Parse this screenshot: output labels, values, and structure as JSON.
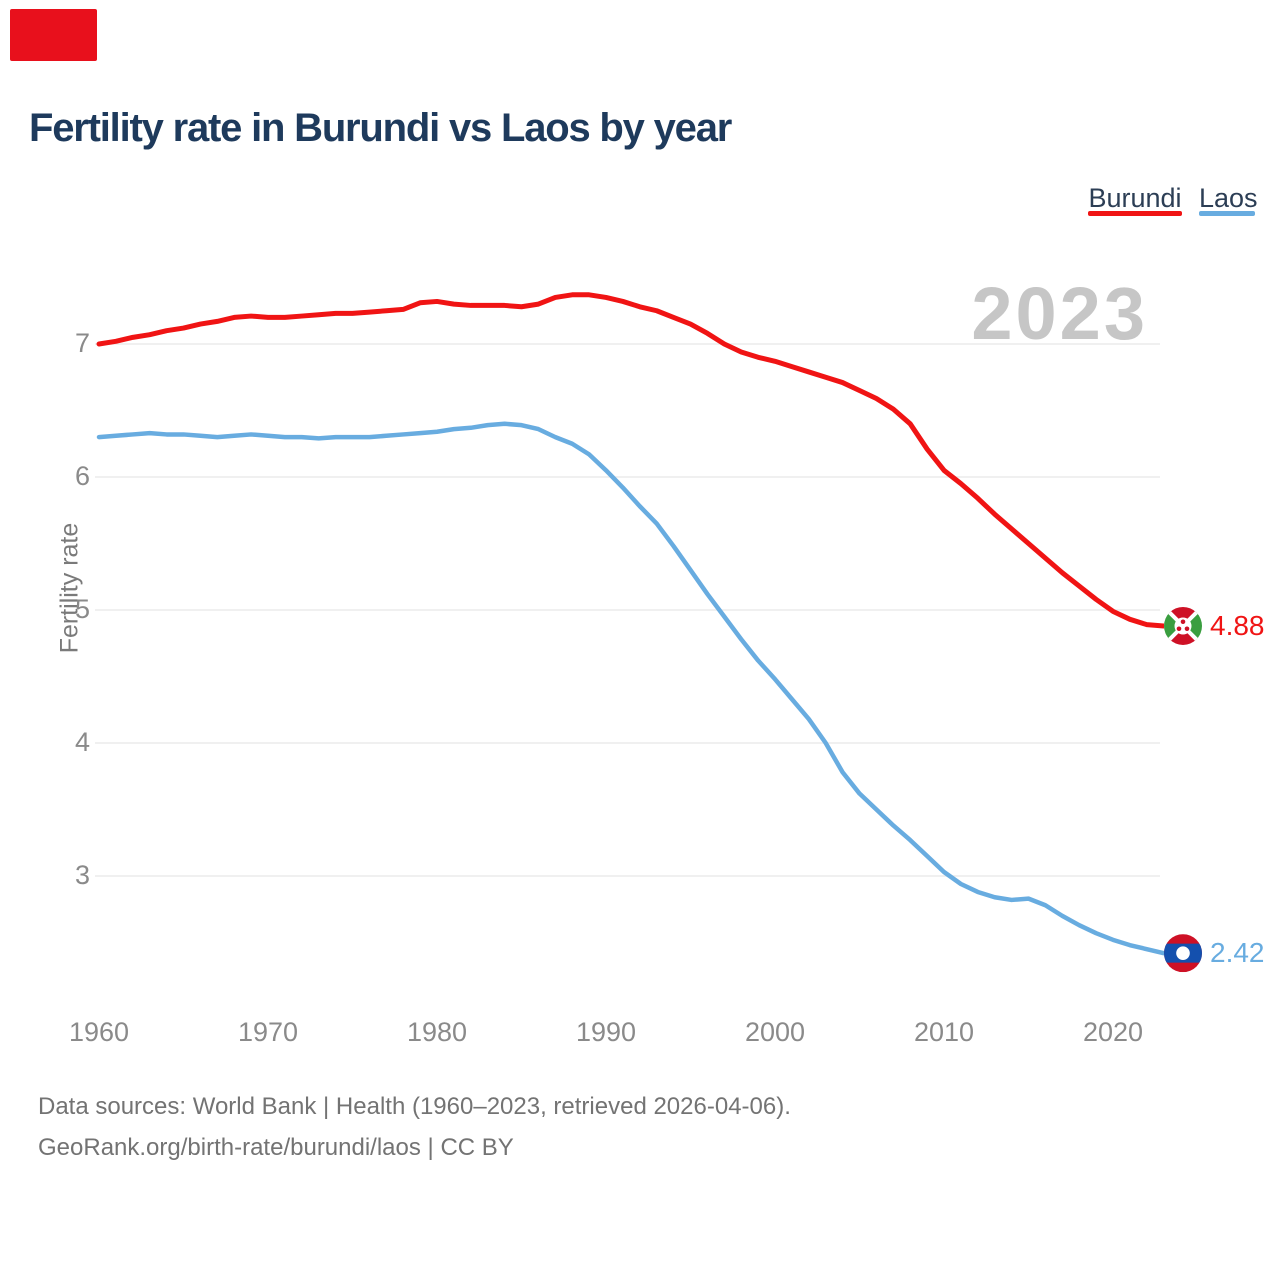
{
  "header": {
    "title": "Fertility rate in Burundi vs Laos by year"
  },
  "legend": [
    {
      "label": "Burundi",
      "color": "#f01414"
    },
    {
      "label": "Laos",
      "color": "#68ace0"
    }
  ],
  "watermark": "2023",
  "axes": {
    "y_label": "Fertility rate",
    "y_ticks": [
      7,
      6,
      5,
      4,
      3
    ],
    "x_ticks": [
      1960,
      1970,
      1980,
      1990,
      2000,
      2010,
      2020
    ]
  },
  "end_labels": {
    "burundi": "4.88",
    "laos": "2.42"
  },
  "footer": {
    "line1": "Data sources: World Bank | Health (1960–2023, retrieved 2026-04-06).",
    "line2": "GeoRank.org/birth-rate/burundi/laos | CC BY"
  },
  "colors": {
    "burundi_line": "#f01414",
    "laos_line": "#68ace0",
    "red_box": "#e8101c",
    "gridline": "#ececec",
    "title_text": "#1e3a5c",
    "tick_text": "#8a8a8a",
    "watermark_text": "#c6c6c6",
    "burundi_flag_red": "#ce1126",
    "burundi_flag_green": "#3a9e3f",
    "laos_flag_red": "#ce1126",
    "laos_flag_blue": "#1450ae"
  },
  "chart_data": {
    "type": "line",
    "title": "Fertility rate in Burundi vs Laos by year",
    "xlabel": "",
    "ylabel": "Fertility rate",
    "ylim": [
      2.2,
      7.6
    ],
    "xlim": [
      1960,
      2023
    ],
    "grid": "horizontal",
    "legend_position": "top-right",
    "current_year_watermark": "2023",
    "x": [
      1960,
      1961,
      1962,
      1963,
      1964,
      1965,
      1966,
      1967,
      1968,
      1969,
      1970,
      1971,
      1972,
      1973,
      1974,
      1975,
      1976,
      1977,
      1978,
      1979,
      1980,
      1981,
      1982,
      1983,
      1984,
      1985,
      1986,
      1987,
      1988,
      1989,
      1990,
      1991,
      1992,
      1993,
      1994,
      1995,
      1996,
      1997,
      1998,
      1999,
      2000,
      2001,
      2002,
      2003,
      2004,
      2005,
      2006,
      2007,
      2008,
      2009,
      2010,
      2011,
      2012,
      2013,
      2014,
      2015,
      2016,
      2017,
      2018,
      2019,
      2020,
      2021,
      2022,
      2023
    ],
    "series": [
      {
        "name": "Burundi",
        "color": "#f01414",
        "end_value": 4.88,
        "values": [
          7.0,
          7.02,
          7.05,
          7.07,
          7.1,
          7.12,
          7.15,
          7.17,
          7.2,
          7.21,
          7.2,
          7.2,
          7.21,
          7.22,
          7.23,
          7.23,
          7.24,
          7.25,
          7.26,
          7.31,
          7.32,
          7.3,
          7.29,
          7.29,
          7.29,
          7.28,
          7.3,
          7.35,
          7.37,
          7.37,
          7.35,
          7.32,
          7.28,
          7.25,
          7.2,
          7.15,
          7.08,
          7.0,
          6.94,
          6.9,
          6.87,
          6.83,
          6.79,
          6.75,
          6.71,
          6.65,
          6.59,
          6.51,
          6.4,
          6.21,
          6.05,
          5.95,
          5.84,
          5.72,
          5.61,
          5.5,
          5.39,
          5.28,
          5.18,
          5.08,
          4.99,
          4.93,
          4.89,
          4.88
        ]
      },
      {
        "name": "Laos",
        "color": "#68ace0",
        "end_value": 2.42,
        "values": [
          6.3,
          6.31,
          6.32,
          6.33,
          6.32,
          6.32,
          6.31,
          6.3,
          6.31,
          6.32,
          6.31,
          6.3,
          6.3,
          6.29,
          6.3,
          6.3,
          6.3,
          6.31,
          6.32,
          6.33,
          6.34,
          6.36,
          6.37,
          6.39,
          6.4,
          6.39,
          6.36,
          6.3,
          6.25,
          6.17,
          6.05,
          5.92,
          5.78,
          5.65,
          5.48,
          5.3,
          5.12,
          4.95,
          4.78,
          4.62,
          4.48,
          4.33,
          4.18,
          4.0,
          3.78,
          3.62,
          3.5,
          3.38,
          3.27,
          3.15,
          3.03,
          2.94,
          2.88,
          2.84,
          2.82,
          2.83,
          2.78,
          2.7,
          2.63,
          2.57,
          2.52,
          2.48,
          2.45,
          2.42
        ]
      }
    ]
  }
}
